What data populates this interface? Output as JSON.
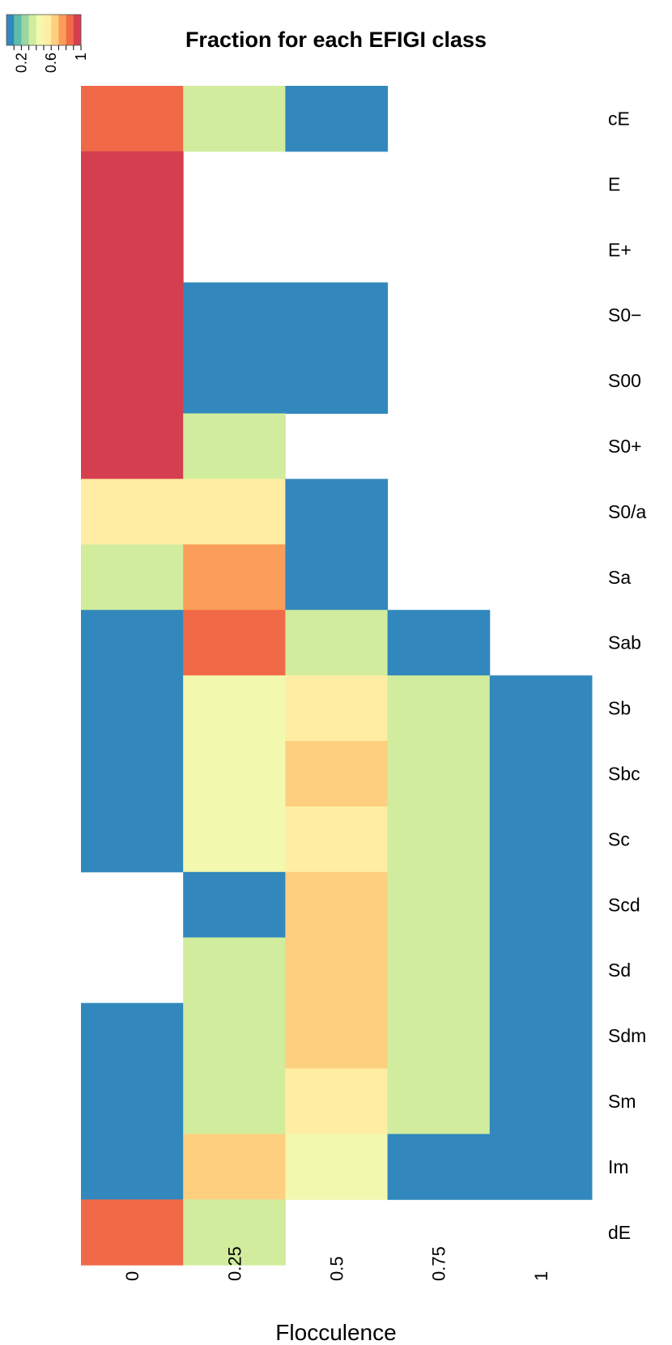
{
  "chart_data": {
    "type": "heatmap",
    "title": "Fraction for each EFIGI class",
    "xlabel": "Flocculence",
    "ylabel": "",
    "x_categories": [
      "0",
      "0.25",
      "0.5",
      "0.75",
      "1"
    ],
    "y_categories": [
      "cE",
      "E",
      "E+",
      "S0−",
      "S00",
      "S0+",
      "S0/a",
      "Sa",
      "Sab",
      "Sb",
      "Sbc",
      "Sc",
      "Scd",
      "Sd",
      "Sdm",
      "Sm",
      "Im",
      "dE"
    ],
    "values": [
      [
        0.8,
        0.3,
        0.05,
        null,
        null
      ],
      [
        1.0,
        null,
        null,
        null,
        null
      ],
      [
        1.0,
        null,
        null,
        null,
        null
      ],
      [
        1.0,
        0.05,
        0.05,
        null,
        null
      ],
      [
        1.0,
        0.05,
        0.05,
        null,
        null
      ],
      [
        0.9,
        0.3,
        null,
        null,
        null
      ],
      [
        0.55,
        0.55,
        0.05,
        null,
        null
      ],
      [
        0.35,
        0.7,
        0.05,
        null,
        null
      ],
      [
        0.05,
        0.8,
        0.35,
        0.05,
        null
      ],
      [
        0.05,
        0.45,
        0.55,
        0.3,
        0.05
      ],
      [
        0.05,
        0.45,
        0.65,
        0.3,
        0.05
      ],
      [
        0.05,
        0.45,
        0.55,
        0.3,
        0.05
      ],
      [
        null,
        0.05,
        0.65,
        0.35,
        0.05
      ],
      [
        null,
        0.3,
        0.65,
        0.3,
        0.05
      ],
      [
        0.05,
        0.35,
        0.65,
        0.3,
        0.05
      ],
      [
        0.05,
        0.35,
        0.55,
        0.35,
        0.05
      ],
      [
        0.05,
        0.65,
        0.45,
        0.05,
        0.05
      ],
      [
        0.8,
        0.35,
        null,
        null,
        null
      ]
    ],
    "zlim": [
      0,
      1
    ],
    "colorscale": [
      "#3288BD",
      "#5EBBA9",
      "#99D6A0",
      "#D2EC9D",
      "#F2F8AE",
      "#FEEDA3",
      "#FDCF7F",
      "#FA9E5A",
      "#F16A48",
      "#D53E4F"
    ],
    "legend": {
      "position": "top-left",
      "tick_labels": [
        "0.2",
        "0.6",
        "1"
      ],
      "tick_values": [
        0.2,
        0.6,
        1.0
      ]
    },
    "grid": false
  }
}
